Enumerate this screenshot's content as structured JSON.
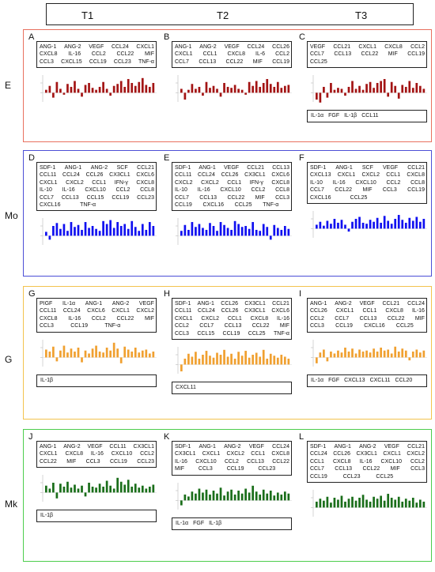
{
  "header": {
    "cols": [
      "T1",
      "T2",
      "T3"
    ]
  },
  "groups": [
    {
      "id": "E",
      "label": "E",
      "color": "#e8705f",
      "bar": "#a31414",
      "panels": [
        {
          "letter": "A",
          "factors": [
            [
              "ANG-1",
              "ANG-2",
              "VEGF",
              "CCL24",
              "CXCL1"
            ],
            [
              "CXCL8",
              "IL-16",
              "CCL2",
              "CCL22",
              "MIF"
            ],
            [
              "CCL3",
              "CXCL15",
              "CCL19",
              "CCL23",
              "TNF-α"
            ]
          ],
          "down": [],
          "bars": [
            0.15,
            0.35,
            -0.25,
            0.55,
            0.2,
            -0.1,
            0.45,
            0.3,
            0.6,
            0.2,
            -0.2,
            0.4,
            0.5,
            0.25,
            0.15,
            0.3,
            0.55,
            0.2,
            -0.15,
            0.35,
            0.45,
            0.6,
            0.3,
            0.7,
            0.5,
            0.35,
            0.55,
            0.75,
            0.4,
            0.3,
            0.5
          ]
        },
        {
          "letter": "B",
          "factors": [
            [
              "ANG-1",
              "ANG-2",
              "VEGF",
              "CCL24",
              "CCL26"
            ],
            [
              "CXCL1",
              "CCL1",
              "CXCL8",
              "IL-6",
              "CCL2"
            ],
            [
              "CCL7",
              "CCL13",
              "CCL22",
              "MIF",
              "CCL19"
            ]
          ],
          "down": [],
          "bars": [
            0.2,
            -0.35,
            0.15,
            0.45,
            0.2,
            0.3,
            -0.15,
            0.55,
            0.25,
            0.35,
            0.2,
            -0.2,
            0.5,
            0.3,
            0.25,
            0.4,
            0.2,
            0.15,
            -0.1,
            0.55,
            0.35,
            0.6,
            0.3,
            0.5,
            0.7,
            0.45,
            0.3,
            0.55,
            0.25,
            0.35,
            0.4
          ]
        },
        {
          "letter": "C",
          "factors": [
            [
              "VEGF",
              "CCL21",
              "CXCL1",
              "CXCL8",
              "CCL2"
            ],
            [
              "CCL7",
              "CCL13",
              "CCL22",
              "MIF",
              "CCL19"
            ],
            [
              "CCL25",
              "",
              "",
              "",
              ""
            ]
          ],
          "down": [
            "IL-1α",
            "FGF",
            "IL-1β",
            "CCL11"
          ],
          "bars": [
            -0.35,
            -0.5,
            0.3,
            -0.25,
            0.5,
            0.15,
            0.25,
            0.2,
            -0.15,
            0.3,
            0.6,
            0.2,
            0.35,
            0.15,
            0.45,
            0.55,
            0.25,
            0.5,
            0.6,
            0.7,
            -0.2,
            0.55,
            0.35,
            -0.3,
            0.4,
            0.3,
            0.6,
            0.25,
            0.5,
            0.35,
            0.2
          ]
        }
      ]
    },
    {
      "id": "Mo",
      "label": "Mo",
      "color": "#4c4fd6",
      "bar": "#1010f0",
      "panels": [
        {
          "letter": "D",
          "factors": [
            [
              "SDF-1",
              "ANG-1",
              "ANG-2",
              "SCF",
              "CCL21"
            ],
            [
              "CCL11",
              "CCL24",
              "CCL26",
              "CX3CL1",
              "CXCL6"
            ],
            [
              "CXCL1",
              "CXCL2",
              "CCL1",
              "IFN-γ",
              "CXCL8"
            ],
            [
              "IL-10",
              "IL-16",
              "CXCL10",
              "CCL2",
              "CCL8"
            ],
            [
              "CCL7",
              "CCL13",
              "CCL15",
              "CCL19",
              "CCL23"
            ],
            [
              "CXCL16",
              "TNF-α",
              "",
              "",
              ""
            ]
          ],
          "down": [],
          "bars": [
            0.2,
            -0.2,
            0.5,
            0.65,
            0.35,
            0.6,
            0.25,
            0.7,
            0.45,
            0.55,
            0.3,
            0.7,
            0.4,
            0.5,
            0.35,
            0.25,
            0.75,
            0.6,
            0.8,
            0.4,
            0.7,
            0.5,
            0.6,
            0.35,
            0.75,
            0.45,
            0.25,
            0.6,
            0.3,
            0.7,
            0.5
          ]
        },
        {
          "letter": "E",
          "factors": [
            [
              "SDF-1",
              "ANG-1",
              "VEGF",
              "CCL21",
              "CCL13"
            ],
            [
              "CCL11",
              "CCL24",
              "CCL26",
              "CX3CL1",
              "CXCL6"
            ],
            [
              "CXCL2",
              "CXCL2",
              "CCL1",
              "IFN-γ",
              "CXCL8"
            ],
            [
              "IL-10",
              "IL-16",
              "CXCL10",
              "CCL2",
              "CCL8"
            ],
            [
              "CCL7",
              "CCL13",
              "CCL22",
              "MIF",
              "CCL3"
            ],
            [
              "CCL19",
              "CXCL16",
              "CCL25",
              "TNF-α",
              ""
            ]
          ],
          "down": [],
          "bars": [
            0.25,
            0.55,
            0.3,
            0.7,
            0.45,
            0.6,
            0.4,
            0.3,
            0.65,
            0.5,
            0.25,
            0.7,
            0.55,
            0.4,
            0.3,
            0.75,
            0.6,
            0.45,
            0.5,
            0.35,
            0.7,
            0.3,
            0.25,
            0.6,
            0.45,
            -0.2,
            0.55,
            0.4,
            0.3,
            0.5,
            0.35
          ]
        },
        {
          "letter": "F",
          "factors": [
            [
              "SDF-1",
              "ANG-1",
              "SCF",
              "VEGF",
              "CCL21"
            ],
            [
              "CXCL13",
              "CXCL1",
              "CXCL2",
              "CCL1",
              "CXCL8"
            ],
            [
              "IL-10",
              "IL-16",
              "CXCL10",
              "CCL2",
              "CCL8"
            ],
            [
              "CCL7",
              "CCL22",
              "MIF",
              "CCL3",
              "CCL19"
            ],
            [
              "CXCL16",
              "CCL25",
              "",
              "",
              ""
            ]
          ],
          "down": [],
          "bars": [
            0.2,
            0.35,
            0.15,
            0.4,
            0.25,
            0.5,
            0.3,
            0.45,
            0.2,
            -0.15,
            0.35,
            0.5,
            0.6,
            0.3,
            0.25,
            0.45,
            0.35,
            0.55,
            0.3,
            0.65,
            0.4,
            0.25,
            0.5,
            0.7,
            0.45,
            0.3,
            0.55,
            0.4,
            0.6,
            0.35,
            0.5
          ]
        }
      ]
    },
    {
      "id": "G",
      "label": "G",
      "color": "#f3c34d",
      "bar": "#f0a030",
      "panels": [
        {
          "letter": "G",
          "factors": [
            [
              "PIGF",
              "IL-1α",
              "ANG-1",
              "ANG-2",
              "VEGF"
            ],
            [
              "CCL11",
              "CCL24",
              "CXCL6",
              "CXCL1",
              "CXCL2"
            ],
            [
              "CXCL8",
              "IL-16",
              "CCL2",
              "CCL22",
              "MIF"
            ],
            [
              "CCL3",
              "CCL19",
              "TNF-α",
              "",
              ""
            ]
          ],
          "down": [
            "IL-1β"
          ],
          "bars": [
            0.4,
            0.3,
            0.55,
            -0.2,
            0.35,
            0.6,
            0.25,
            0.45,
            0.3,
            0.5,
            -0.25,
            0.35,
            0.2,
            0.45,
            0.6,
            0.3,
            0.25,
            0.5,
            0.35,
            0.75,
            0.45,
            -0.3,
            0.55,
            0.4,
            0.3,
            0.5,
            0.25,
            0.35,
            0.4,
            0.2,
            0.3
          ]
        },
        {
          "letter": "H",
          "factors": [
            [
              "SDF-1",
              "ANG-1",
              "CCL26",
              "CX3CL1",
              "CCL21"
            ],
            [
              "CCL11",
              "CCL24",
              "CCL26",
              "CX3CL1",
              "CXCL6"
            ],
            [
              "CXCL1",
              "CXCL2",
              "CCL1",
              "CXCL8",
              "IL-16"
            ],
            [
              "CCL2",
              "CCL7",
              "CCL13",
              "CCL22",
              "MIF"
            ],
            [
              "CCL3",
              "CCL15",
              "CCL19",
              "CCL25",
              "TNF-α"
            ]
          ],
          "down": [
            "CXCL11"
          ],
          "bars": [
            -0.35,
            0.3,
            0.55,
            0.4,
            0.65,
            0.3,
            0.5,
            0.7,
            0.45,
            0.35,
            0.6,
            0.5,
            0.75,
            0.4,
            0.55,
            0.3,
            0.65,
            0.45,
            0.7,
            0.35,
            0.5,
            0.6,
            0.4,
            0.75,
            0.3,
            0.55,
            0.45,
            0.35,
            0.5,
            0.4,
            0.3
          ]
        },
        {
          "letter": "I",
          "factors": [
            [
              "ANG-1",
              "ANG-2",
              "VEGF",
              "CCL21",
              "CCL24"
            ],
            [
              "CCL26",
              "CXCL1",
              "CCL1",
              "CXCL8",
              "IL-16"
            ],
            [
              "CCL2",
              "CCL7",
              "CCL13",
              "CCL22",
              "MIF"
            ],
            [
              "CCL3",
              "CCL19",
              "CXCL16",
              "CCL25",
              ""
            ]
          ],
          "down": [
            "IL-1α",
            "FGF",
            "CXCL13",
            "CXCL11",
            "CCL20"
          ],
          "bars": [
            -0.3,
            0.25,
            0.4,
            -0.2,
            0.3,
            0.2,
            0.35,
            0.25,
            0.5,
            0.3,
            0.45,
            0.2,
            0.4,
            0.3,
            0.35,
            0.25,
            0.45,
            0.3,
            0.5,
            0.35,
            0.4,
            0.2,
            0.55,
            0.3,
            0.45,
            0.35,
            -0.15,
            0.3,
            0.4,
            0.25,
            0.35
          ]
        }
      ]
    },
    {
      "id": "Mk",
      "label": "Mk",
      "color": "#4ccd4c",
      "bar": "#1a6e1a",
      "panels": [
        {
          "letter": "J",
          "factors": [
            [
              "ANG-1",
              "ANG-2",
              "VEGF",
              "CCL11",
              "CX3CL1"
            ],
            [
              "CXCL1",
              "CXCL8",
              "IL-16",
              "CXCL10",
              "CCL2"
            ],
            [
              "CCL22",
              "MIF",
              "CCL3",
              "CCL19",
              "CCL23"
            ]
          ],
          "down": [
            "IL-1β"
          ],
          "bars": [
            0.35,
            0.2,
            0.5,
            -0.3,
            0.45,
            0.3,
            0.55,
            0.25,
            0.4,
            0.2,
            0.35,
            -0.2,
            0.5,
            0.3,
            0.25,
            0.45,
            0.3,
            0.6,
            0.35,
            0.2,
            0.75,
            0.55,
            0.4,
            0.65,
            0.3,
            0.45,
            0.25,
            0.35,
            0.2,
            0.3,
            0.4
          ]
        },
        {
          "letter": "K",
          "factors": [
            [
              "SDF-1",
              "ANG-1",
              "ANG-2",
              "VEGF",
              "CCL24"
            ],
            [
              "CX3CL1",
              "CXCL1",
              "CXCL2",
              "CCL1",
              "CXCL8"
            ],
            [
              "IL-16",
              "CXCL10",
              "CCL2",
              "CCL13",
              "CCL22"
            ],
            [
              "MIF",
              "CCL3",
              "CCL19",
              "CCL23",
              ""
            ]
          ],
          "down": [
            "IL-1α",
            "FGF",
            "IL-1β"
          ],
          "bars": [
            -0.25,
            0.3,
            0.2,
            0.45,
            0.35,
            0.6,
            0.4,
            0.55,
            0.3,
            0.5,
            0.35,
            0.65,
            0.25,
            0.45,
            0.55,
            0.3,
            0.5,
            0.35,
            0.6,
            0.4,
            0.75,
            0.45,
            0.3,
            0.55,
            0.35,
            0.5,
            0.25,
            0.4,
            0.3,
            0.45,
            0.35
          ]
        },
        {
          "letter": "L",
          "factors": [
            [
              "SDF-1",
              "ANG-1",
              "ANG-2",
              "VEGF",
              "CCL21"
            ],
            [
              "CCL24",
              "CCL26",
              "CX3CL1",
              "CXCL1",
              "CXCL2"
            ],
            [
              "CCL1",
              "CXCL8",
              "IL-16",
              "CXCL10",
              "CCL2"
            ],
            [
              "CCL7",
              "CCL13",
              "CCL22",
              "MIF",
              "CCL3"
            ],
            [
              "CCL19",
              "CCL23",
              "CCL25",
              "",
              ""
            ]
          ],
          "down": [],
          "bars": [
            0.3,
            0.45,
            0.35,
            0.55,
            0.25,
            0.5,
            0.4,
            0.6,
            0.3,
            0.45,
            0.55,
            0.35,
            0.5,
            0.65,
            0.4,
            0.3,
            0.55,
            0.45,
            0.6,
            0.35,
            0.7,
            0.5,
            0.4,
            0.55,
            0.3,
            0.45,
            0.35,
            0.5,
            0.25,
            0.4,
            0.3
          ]
        }
      ]
    }
  ]
}
